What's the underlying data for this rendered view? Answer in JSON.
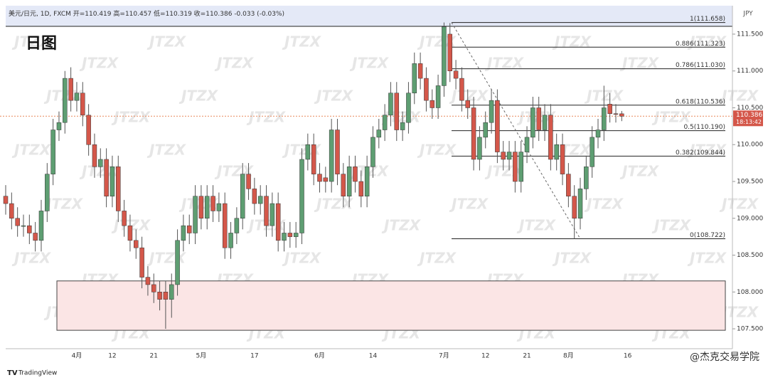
{
  "chart_data": {
    "type": "candlestick",
    "symbol": "美元/日元, 1D, FXCM",
    "open_label": "开=",
    "high_label": "高=",
    "low_label": "低=",
    "close_label": "收=",
    "change": "-0.033 (-0.03%)",
    "title": "日图",
    "currency": "JPY",
    "watermark": "JTZX",
    "brand": "TradingView",
    "credit": "@杰克交易学院",
    "countdown": "18:13:42",
    "last_price": 110.386,
    "up_color": "#5e9e72",
    "down_color": "#d4574a",
    "categories": [
      null,
      null,
      null,
      null,
      null,
      null,
      null,
      null,
      null,
      null,
      null,
      null,
      "4月",
      null,
      null,
      null,
      null,
      null,
      "12",
      null,
      null,
      null,
      null,
      null,
      null,
      "21",
      null,
      null,
      null,
      null,
      null,
      null,
      null,
      "5月",
      null,
      null,
      null,
      null,
      null,
      null,
      null,
      null,
      "17",
      null,
      null,
      null,
      null,
      null,
      null,
      null,
      null,
      null,
      null,
      "6月",
      null,
      null,
      null,
      null,
      null,
      null,
      null,
      null,
      "14",
      null,
      null,
      null,
      null,
      null,
      null,
      null,
      null,
      null,
      null,
      null,
      "7月",
      null,
      null,
      null,
      null,
      null,
      null,
      "12",
      null,
      null,
      null,
      null,
      null,
      null,
      "21",
      null,
      null,
      null,
      null,
      null,
      null,
      "8月",
      null,
      null,
      null,
      null,
      null,
      null,
      null,
      null,
      null,
      "16"
    ],
    "open": [
      109.3,
      109.2,
      109.0,
      108.9,
      108.9,
      108.8,
      108.7,
      109.1,
      109.6,
      110.2,
      110.3,
      110.9,
      110.6,
      110.7,
      110.4,
      110.0,
      109.7,
      109.8,
      109.3,
      109.7,
      109.1,
      108.9,
      108.7,
      108.6,
      108.2,
      108.1,
      108.0,
      108.0,
      107.9,
      108.1,
      108.7,
      108.9,
      108.8,
      109.3,
      109.0,
      109.3,
      109.1,
      109.2,
      108.6,
      108.8,
      109.0,
      109.6,
      109.4,
      109.2,
      109.3,
      108.9,
      109.2,
      108.7,
      108.8,
      108.75,
      108.8,
      109.8,
      110.0,
      109.6,
      109.55,
      109.5,
      110.2,
      109.6,
      109.3,
      109.7,
      109.5,
      109.3,
      109.7,
      110.1,
      110.2,
      110.4,
      110.7,
      110.2,
      110.3,
      110.7,
      111.1,
      110.9,
      110.6,
      110.5,
      110.8,
      111.5,
      111.0,
      110.9,
      110.6,
      110.5,
      109.8,
      110.1,
      110.3,
      110.6,
      109.9,
      109.8,
      109.9,
      109.5,
      109.9,
      110.1,
      110.5,
      110.2,
      110.4,
      109.8,
      110.0,
      109.6,
      109.3,
      109.0,
      109.4,
      109.7,
      110.1,
      110.2,
      110.55,
      110.42,
      110.419,
      null
    ],
    "high": [
      109.45,
      109.35,
      109.15,
      109.05,
      109.05,
      108.95,
      109.25,
      109.75,
      110.35,
      110.45,
      111.0,
      111.05,
      110.85,
      110.85,
      110.55,
      110.15,
      109.95,
      109.95,
      109.85,
      109.85,
      109.25,
      109.05,
      108.85,
      108.75,
      108.35,
      108.25,
      108.15,
      108.15,
      108.25,
      108.85,
      109.05,
      109.05,
      109.45,
      109.45,
      109.45,
      109.45,
      109.35,
      109.35,
      108.95,
      109.15,
      109.75,
      109.75,
      109.55,
      109.45,
      109.45,
      109.35,
      109.35,
      108.95,
      108.95,
      108.95,
      109.95,
      110.15,
      110.15,
      109.75,
      109.7,
      110.35,
      110.35,
      109.75,
      109.85,
      109.85,
      109.65,
      109.85,
      110.25,
      110.35,
      110.55,
      110.85,
      110.85,
      110.45,
      110.85,
      111.25,
      111.25,
      111.05,
      110.75,
      110.95,
      111.658,
      111.65,
      111.15,
      111.05,
      110.75,
      110.65,
      110.25,
      110.45,
      110.75,
      110.75,
      110.05,
      110.05,
      110.05,
      110.05,
      110.25,
      110.65,
      110.65,
      110.55,
      110.55,
      110.15,
      110.15,
      109.75,
      109.45,
      109.55,
      109.85,
      110.25,
      110.35,
      110.8,
      110.7,
      110.55,
      110.457,
      null
    ],
    "low": [
      109.05,
      108.85,
      108.75,
      108.75,
      108.65,
      108.55,
      108.55,
      108.95,
      109.45,
      110.05,
      110.15,
      110.45,
      110.45,
      110.25,
      109.85,
      109.55,
      109.55,
      109.15,
      109.15,
      108.95,
      108.75,
      108.55,
      108.45,
      108.05,
      107.95,
      107.85,
      107.75,
      107.5,
      107.65,
      107.95,
      108.55,
      108.65,
      108.65,
      108.85,
      108.85,
      108.95,
      108.95,
      108.45,
      108.45,
      108.65,
      108.85,
      109.25,
      109.05,
      109.05,
      108.75,
      108.75,
      108.55,
      108.55,
      108.6,
      108.6,
      108.65,
      109.65,
      109.45,
      109.35,
      109.35,
      109.35,
      109.45,
      109.15,
      109.15,
      109.35,
      109.15,
      109.15,
      109.55,
      109.95,
      110.05,
      110.25,
      110.05,
      110.05,
      110.15,
      110.55,
      110.75,
      110.45,
      110.35,
      110.35,
      110.65,
      110.85,
      110.75,
      110.45,
      110.35,
      109.65,
      109.65,
      109.95,
      110.15,
      109.75,
      109.65,
      109.65,
      109.35,
      109.35,
      109.75,
      109.95,
      110.05,
      110.05,
      109.65,
      109.65,
      109.45,
      109.15,
      108.722,
      108.85,
      109.25,
      109.55,
      109.95,
      110.05,
      110.3,
      110.3,
      110.319,
      null
    ],
    "close": [
      109.2,
      109.0,
      108.9,
      108.9,
      108.8,
      108.7,
      109.1,
      109.6,
      110.2,
      110.3,
      110.9,
      110.6,
      110.7,
      110.4,
      110.0,
      109.7,
      109.8,
      109.3,
      109.7,
      109.1,
      108.9,
      108.7,
      108.6,
      108.2,
      108.1,
      108.0,
      107.9,
      107.9,
      108.1,
      108.7,
      108.9,
      108.8,
      109.3,
      109.0,
      109.3,
      109.1,
      109.2,
      108.6,
      108.8,
      109.0,
      109.6,
      109.4,
      109.2,
      109.3,
      108.9,
      109.2,
      108.7,
      108.8,
      108.75,
      108.8,
      109.8,
      110.0,
      109.6,
      109.5,
      109.5,
      110.2,
      109.6,
      109.3,
      109.7,
      109.5,
      109.3,
      109.7,
      110.1,
      110.2,
      110.4,
      110.7,
      110.2,
      110.3,
      110.7,
      111.1,
      110.9,
      110.6,
      110.5,
      110.8,
      111.6,
      111.0,
      110.9,
      110.6,
      110.5,
      109.8,
      110.1,
      110.3,
      110.6,
      109.9,
      109.8,
      109.9,
      109.5,
      109.9,
      110.1,
      110.5,
      110.2,
      110.4,
      109.8,
      110.0,
      109.6,
      109.3,
      109.0,
      109.4,
      109.7,
      110.1,
      110.2,
      110.5,
      110.42,
      110.419,
      110.386,
      null
    ],
    "ylim": [
      107.23,
      111.886
    ],
    "yticks": [
      {
        "value": 107.5,
        "label": "107.500"
      },
      {
        "value": 108,
        "label": "108.000"
      },
      {
        "value": 108.5,
        "label": "108.500"
      },
      {
        "value": 109,
        "label": "109.000"
      },
      {
        "value": 109.5,
        "label": "109.500"
      },
      {
        "value": 110,
        "label": "110.000"
      },
      {
        "value": 110.5,
        "label": "110.500"
      },
      {
        "value": 111,
        "label": "111.000"
      },
      {
        "value": 111.5,
        "label": "111.500"
      }
    ],
    "fib_levels": [
      {
        "value": 111.658,
        "label": "1(111.658)"
      },
      {
        "value": 111.323,
        "label": "0.886(111.323)"
      },
      {
        "value": 111.03,
        "label": "0.786(111.030)"
      },
      {
        "value": 110.536,
        "label": "0.618(110.536)"
      },
      {
        "value": 110.19,
        "label": "0.5(110.190)"
      },
      {
        "value": 109.844,
        "label": "0.382(109.844)"
      },
      {
        "value": 108.722,
        "label": "0(108.722)"
      }
    ],
    "zone": [
      107.48,
      108.15
    ]
  }
}
